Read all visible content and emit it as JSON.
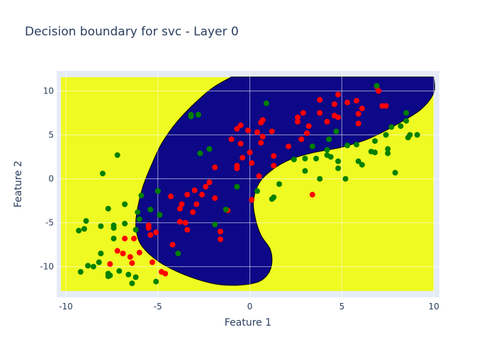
{
  "chart_data": {
    "type": "scatter",
    "title": "Decision boundary for svc - Layer 0",
    "xlabel": "Feature 1",
    "ylabel": "Feature 2",
    "xlim": [
      -10.5,
      10.3
    ],
    "ylim": [
      -13.5,
      12.3
    ],
    "grid": true,
    "legend": "none",
    "x_ticks": [
      -10,
      -5,
      0,
      5,
      10
    ],
    "y_ticks": [
      -10,
      -5,
      0,
      5,
      10
    ],
    "colors": {
      "plot_background": "#e5ecf6",
      "region_outside": "#eff922",
      "region_inside": "#0d0887",
      "series_a": "#ff0000",
      "series_b": "#008000"
    },
    "decision_region": {
      "inside_label": "dark blue",
      "boundary": [
        [
          -1.0,
          11.6
        ],
        [
          -2.0,
          10.4
        ],
        [
          -3.0,
          8.6
        ],
        [
          -4.0,
          6.4
        ],
        [
          -4.8,
          4.0
        ],
        [
          -5.3,
          1.8
        ],
        [
          -5.8,
          -0.8
        ],
        [
          -6.1,
          -3.3
        ],
        [
          -6.2,
          -5.3
        ],
        [
          -6.0,
          -7.2
        ],
        [
          -5.4,
          -8.7
        ],
        [
          -4.5,
          -10.0
        ],
        [
          -3.2,
          -11.2
        ],
        [
          -1.8,
          -12.0
        ],
        [
          -0.5,
          -12.1
        ],
        [
          0.5,
          -11.7
        ],
        [
          1.0,
          -10.8
        ],
        [
          1.2,
          -9.5
        ],
        [
          1.1,
          -8.0
        ],
        [
          0.6,
          -6.4
        ],
        [
          0.3,
          -4.5
        ],
        [
          0.2,
          -2.5
        ],
        [
          0.5,
          -0.5
        ],
        [
          1.2,
          1.0
        ],
        [
          2.2,
          2.2
        ],
        [
          3.5,
          3.0
        ],
        [
          5.0,
          3.6
        ],
        [
          6.5,
          4.6
        ],
        [
          8.0,
          6.2
        ],
        [
          9.3,
          7.9
        ],
        [
          10.0,
          9.8
        ],
        [
          10.0,
          11.6
        ]
      ]
    },
    "series": [
      {
        "values": [
          [
            4.8,
            9.6
          ],
          [
            5.3,
            8.7
          ],
          [
            3.8,
            9.0
          ],
          [
            4.6,
            8.5
          ],
          [
            5.8,
            8.9
          ],
          [
            6.1,
            8.0
          ],
          [
            5.9,
            7.4
          ],
          [
            7.2,
            8.3
          ],
          [
            7.4,
            8.3
          ],
          [
            6.9,
            10.5
          ],
          [
            7.0,
            10.0
          ],
          [
            4.8,
            7.0
          ],
          [
            4.6,
            7.2
          ],
          [
            3.8,
            7.5
          ],
          [
            2.9,
            7.5
          ],
          [
            2.6,
            7.0
          ],
          [
            2.6,
            6.5
          ],
          [
            3.2,
            6.0
          ],
          [
            4.2,
            6.5
          ],
          [
            5.9,
            6.3
          ],
          [
            3.1,
            5.2
          ],
          [
            2.8,
            4.5
          ],
          [
            2.1,
            3.7
          ],
          [
            1.2,
            5.4
          ],
          [
            0.7,
            6.7
          ],
          [
            0.6,
            6.4
          ],
          [
            0.4,
            5.3
          ],
          [
            0.7,
            4.8
          ],
          [
            -0.1,
            5.5
          ],
          [
            -0.5,
            6.1
          ],
          [
            -0.7,
            5.7
          ],
          [
            -1.0,
            4.5
          ],
          [
            -0.5,
            4.0
          ],
          [
            1.3,
            2.6
          ],
          [
            0.6,
            4.1
          ],
          [
            0.0,
            3.0
          ],
          [
            -0.4,
            2.4
          ],
          [
            -0.7,
            1.5
          ],
          [
            -0.7,
            1.2
          ],
          [
            0.1,
            1.8
          ],
          [
            1.3,
            1.5
          ],
          [
            0.5,
            0.3
          ],
          [
            -1.9,
            1.3
          ],
          [
            -2.2,
            -0.4
          ],
          [
            -2.4,
            -0.9
          ],
          [
            -1.9,
            -2.2
          ],
          [
            -2.6,
            -1.8
          ],
          [
            -3.0,
            -1.3
          ],
          [
            -3.4,
            -1.8
          ],
          [
            -3.7,
            -2.9
          ],
          [
            -3.8,
            -3.4
          ],
          [
            -2.9,
            -2.9
          ],
          [
            -3.1,
            -3.8
          ],
          [
            -3.5,
            -5.0
          ],
          [
            -3.8,
            -4.9
          ],
          [
            -3.4,
            -5.8
          ],
          [
            -1.6,
            -6.0
          ],
          [
            -1.2,
            -3.6
          ],
          [
            -1.6,
            -6.9
          ],
          [
            0.1,
            -2.4
          ],
          [
            3.4,
            -1.8
          ],
          [
            -4.3,
            -2.0
          ],
          [
            -5.1,
            -6.1
          ],
          [
            -5.5,
            -5.3
          ],
          [
            -5.5,
            -5.6
          ],
          [
            -5.4,
            -6.4
          ],
          [
            -6.3,
            -6.8
          ],
          [
            -6.8,
            -6.8
          ],
          [
            -6.0,
            -8.4
          ],
          [
            -6.9,
            -8.5
          ],
          [
            -7.2,
            -8.2
          ],
          [
            -6.5,
            -8.9
          ],
          [
            -6.4,
            -9.6
          ],
          [
            -7.6,
            -9.7
          ],
          [
            -5.3,
            -9.5
          ],
          [
            -4.8,
            -10.6
          ],
          [
            -4.6,
            -10.8
          ],
          [
            -4.2,
            -7.5
          ]
        ]
      },
      {
        "values": [
          [
            6.9,
            10.6
          ],
          [
            0.9,
            8.6
          ],
          [
            -3.2,
            7.3
          ],
          [
            -2.8,
            7.3
          ],
          [
            -3.2,
            7.1
          ],
          [
            -2.2,
            3.4
          ],
          [
            -2.7,
            2.9
          ],
          [
            3.4,
            3.7
          ],
          [
            4.3,
            4.5
          ],
          [
            4.7,
            5.4
          ],
          [
            5.3,
            3.8
          ],
          [
            5.8,
            3.9
          ],
          [
            6.6,
            3.1
          ],
          [
            6.8,
            3.0
          ],
          [
            6.8,
            4.3
          ],
          [
            7.4,
            5.0
          ],
          [
            7.7,
            5.9
          ],
          [
            8.2,
            6.0
          ],
          [
            8.5,
            6.6
          ],
          [
            8.5,
            7.5
          ],
          [
            8.6,
            4.7
          ],
          [
            8.7,
            5.0
          ],
          [
            9.1,
            5.0
          ],
          [
            7.5,
            3.4
          ],
          [
            7.5,
            2.9
          ],
          [
            4.2,
            3.3
          ],
          [
            4.2,
            2.7
          ],
          [
            4.4,
            2.5
          ],
          [
            4.8,
            2.0
          ],
          [
            4.8,
            1.2
          ],
          [
            5.9,
            2.0
          ],
          [
            6.1,
            1.6
          ],
          [
            5.2,
            0.0
          ],
          [
            3.8,
            0.0
          ],
          [
            3.6,
            2.3
          ],
          [
            3.0,
            2.3
          ],
          [
            2.4,
            2.2
          ],
          [
            3.0,
            0.9
          ],
          [
            1.6,
            -0.6
          ],
          [
            1.3,
            -2.1
          ],
          [
            1.2,
            -2.3
          ],
          [
            0.4,
            -1.4
          ],
          [
            -0.7,
            -0.9
          ],
          [
            -8.0,
            0.6
          ],
          [
            -7.2,
            2.7
          ],
          [
            -5.9,
            -1.9
          ],
          [
            -5.0,
            -1.4
          ],
          [
            -5.4,
            -3.5
          ],
          [
            -4.9,
            -4.1
          ],
          [
            -6.1,
            -3.8
          ],
          [
            -7.7,
            -3.4
          ],
          [
            -6.8,
            -2.9
          ],
          [
            -6.2,
            -5.8
          ],
          [
            -6.0,
            -4.6
          ],
          [
            -6.8,
            -5.1
          ],
          [
            -7.4,
            -5.3
          ],
          [
            -7.4,
            -5.6
          ],
          [
            -7.4,
            -6.8
          ],
          [
            -8.1,
            -5.4
          ],
          [
            -8.9,
            -4.8
          ],
          [
            -9.0,
            -5.7
          ],
          [
            -9.3,
            -5.9
          ],
          [
            -8.1,
            -8.5
          ],
          [
            -8.2,
            -9.5
          ],
          [
            -8.8,
            -9.9
          ],
          [
            -8.5,
            -10.0
          ],
          [
            -9.2,
            -10.6
          ],
          [
            -7.7,
            -10.8
          ],
          [
            -7.6,
            -11.0
          ],
          [
            -7.7,
            -11.1
          ],
          [
            -7.1,
            -10.5
          ],
          [
            -6.6,
            -10.9
          ],
          [
            -6.4,
            -11.9
          ],
          [
            -6.2,
            -11.2
          ],
          [
            -5.1,
            -11.7
          ],
          [
            -3.9,
            -8.5
          ],
          [
            -1.9,
            -5.2
          ],
          [
            -1.3,
            -3.5
          ],
          [
            7.9,
            0.7
          ]
        ]
      }
    ]
  }
}
